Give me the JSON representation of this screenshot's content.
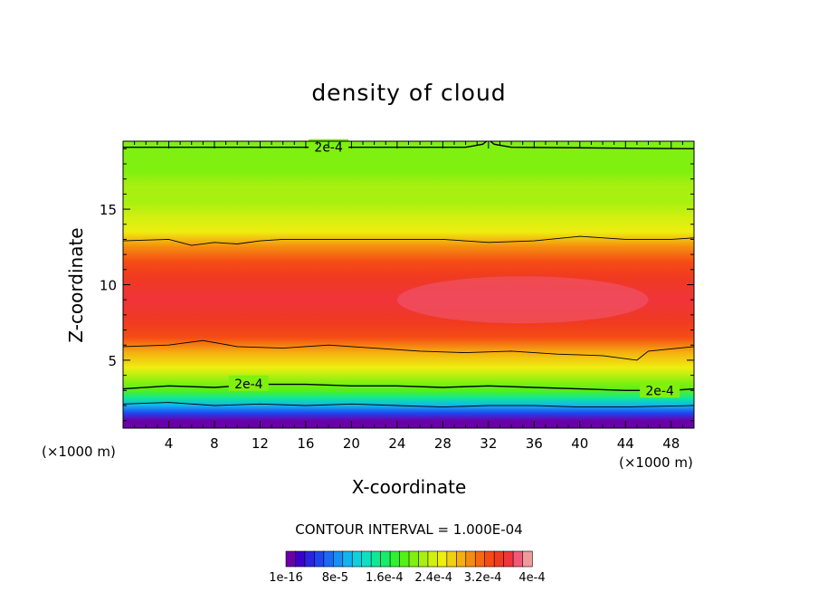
{
  "chart_data": {
    "type": "heatmap",
    "title": "density of cloud",
    "xlabel": "X-coordinate",
    "ylabel": "Z-coordinate",
    "x_unit_left": "(×1000 m)",
    "x_unit_right": "(×1000 m)",
    "xlim": [
      0,
      50
    ],
    "ylim": [
      0.5,
      19.5
    ],
    "x_ticks": [
      4,
      8,
      12,
      16,
      20,
      24,
      28,
      32,
      36,
      40,
      44,
      48
    ],
    "y_ticks": [
      5,
      10,
      15
    ],
    "contour_interval": "CONTOUR INTERVAL = 1.000E-04",
    "contour_level_label": "2e-4",
    "colorbar": {
      "min": 0,
      "max": 0.0004,
      "labels": [
        "1e-16",
        "8e-5",
        "1.6e-4",
        "2.4e-4",
        "3.2e-4",
        "4e-4"
      ],
      "colors": [
        "#6a00a8",
        "#3c00c8",
        "#2a24e0",
        "#1f45f0",
        "#1a6af5",
        "#1590f5",
        "#10b5f0",
        "#10d0e0",
        "#10e0c0",
        "#10e898",
        "#18ec6a",
        "#30f030",
        "#55f018",
        "#80f010",
        "#a8f010",
        "#d0f010",
        "#eeee10",
        "#f0d010",
        "#f5b010",
        "#f58c10",
        "#f56a10",
        "#f54c14",
        "#f03a20",
        "#f0343a",
        "#f05a78",
        "#f09a9a"
      ]
    },
    "profile": [
      {
        "z": 1.0,
        "value": 1e-05
      },
      {
        "z": 1.5,
        "value": 5e-05
      },
      {
        "z": 2.0,
        "value": 0.0001
      },
      {
        "z": 2.5,
        "value": 0.00015
      },
      {
        "z": 3.0,
        "value": 0.00019
      },
      {
        "z": 3.5,
        "value": 0.00021
      },
      {
        "z": 4.5,
        "value": 0.00025
      },
      {
        "z": 5.5,
        "value": 0.00029
      },
      {
        "z": 6.5,
        "value": 0.00033
      },
      {
        "z": 7.5,
        "value": 0.00035
      },
      {
        "z": 9.0,
        "value": 0.00036
      },
      {
        "z": 10.5,
        "value": 0.00035
      },
      {
        "z": 11.5,
        "value": 0.00033
      },
      {
        "z": 12.5,
        "value": 0.0003
      },
      {
        "z": 13.5,
        "value": 0.00026
      },
      {
        "z": 14.5,
        "value": 0.00024
      },
      {
        "z": 15.5,
        "value": 0.00023
      },
      {
        "z": 16.5,
        "value": 0.00022
      },
      {
        "z": 17.5,
        "value": 0.00021
      },
      {
        "z": 18.5,
        "value": 0.000205
      },
      {
        "z": 19.5,
        "value": 0.0002
      }
    ],
    "contours": [
      {
        "level": 0.0002,
        "labeled": true,
        "points": [
          [
            0,
            19.1
          ],
          [
            30,
            19.1
          ],
          [
            31.5,
            19.3
          ],
          [
            32,
            19.6
          ],
          [
            32.5,
            19.3
          ],
          [
            34,
            19.1
          ],
          [
            50,
            19.0
          ]
        ]
      },
      {
        "level": 0.0003,
        "labeled": false,
        "points": [
          [
            0,
            12.9
          ],
          [
            4,
            13.0
          ],
          [
            6,
            12.6
          ],
          [
            8,
            12.8
          ],
          [
            10,
            12.7
          ],
          [
            12,
            12.9
          ],
          [
            14,
            13.0
          ],
          [
            20,
            13.0
          ],
          [
            28,
            13.0
          ],
          [
            32,
            12.8
          ],
          [
            36,
            12.9
          ],
          [
            40,
            13.2
          ],
          [
            44,
            13.0
          ],
          [
            48,
            13.0
          ],
          [
            50,
            13.1
          ]
        ]
      },
      {
        "level": 0.0003,
        "labeled": false,
        "points": [
          [
            0,
            5.9
          ],
          [
            4,
            6.0
          ],
          [
            7,
            6.3
          ],
          [
            10,
            5.9
          ],
          [
            14,
            5.8
          ],
          [
            18,
            6.0
          ],
          [
            22,
            5.8
          ],
          [
            26,
            5.6
          ],
          [
            30,
            5.5
          ],
          [
            34,
            5.6
          ],
          [
            38,
            5.4
          ],
          [
            42,
            5.3
          ],
          [
            45,
            5.0
          ],
          [
            46,
            5.6
          ],
          [
            50,
            5.9
          ]
        ]
      },
      {
        "level": 0.0002,
        "labeled": true,
        "points": [
          [
            0,
            3.1
          ],
          [
            4,
            3.3
          ],
          [
            8,
            3.2
          ],
          [
            12,
            3.4
          ],
          [
            16,
            3.4
          ],
          [
            20,
            3.3
          ],
          [
            24,
            3.3
          ],
          [
            28,
            3.2
          ],
          [
            32,
            3.3
          ],
          [
            36,
            3.2
          ],
          [
            40,
            3.1
          ],
          [
            44,
            3.0
          ],
          [
            48,
            3.0
          ],
          [
            50,
            3.1
          ]
        ]
      },
      {
        "level": 0.0001,
        "labeled": false,
        "points": [
          [
            0,
            2.1
          ],
          [
            4,
            2.2
          ],
          [
            8,
            2.0
          ],
          [
            12,
            2.1
          ],
          [
            16,
            2.0
          ],
          [
            20,
            2.1
          ],
          [
            24,
            2.0
          ],
          [
            28,
            1.9
          ],
          [
            32,
            2.0
          ],
          [
            36,
            2.0
          ],
          [
            40,
            1.9
          ],
          [
            44,
            1.9
          ],
          [
            50,
            2.0
          ]
        ]
      }
    ],
    "clabel_positions": [
      {
        "x": 18,
        "z": 19.1
      },
      {
        "x": 11,
        "z": 3.45
      },
      {
        "x": 47,
        "z": 3.0
      }
    ]
  }
}
